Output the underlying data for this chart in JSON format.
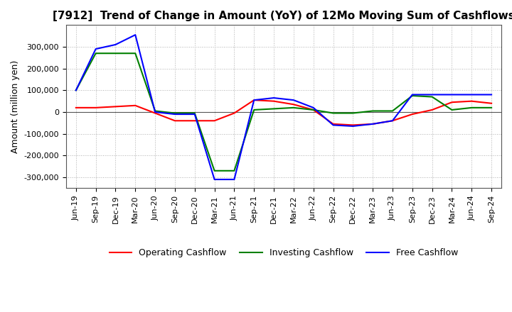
{
  "title": "[7912]  Trend of Change in Amount (YoY) of 12Mo Moving Sum of Cashflows",
  "ylabel": "Amount (million yen)",
  "ylim": [
    -350000,
    400000
  ],
  "yticks": [
    -300000,
    -200000,
    -100000,
    0,
    100000,
    200000,
    300000
  ],
  "legend_labels": [
    "Operating Cashflow",
    "Investing Cashflow",
    "Free Cashflow"
  ],
  "legend_colors": [
    "#ff0000",
    "#008000",
    "#0000ff"
  ],
  "x_labels": [
    "Jun-19",
    "Sep-19",
    "Dec-19",
    "Mar-20",
    "Jun-20",
    "Sep-20",
    "Dec-20",
    "Mar-21",
    "Jun-21",
    "Sep-21",
    "Dec-21",
    "Mar-22",
    "Jun-22",
    "Sep-22",
    "Dec-22",
    "Mar-23",
    "Jun-23",
    "Sep-23",
    "Dec-23",
    "Mar-24",
    "Jun-24",
    "Sep-24"
  ],
  "operating_cashflow": [
    20000,
    20000,
    25000,
    30000,
    -5000,
    -40000,
    -40000,
    -40000,
    -5000,
    55000,
    50000,
    35000,
    10000,
    -55000,
    -60000,
    -55000,
    -40000,
    -10000,
    10000,
    45000,
    50000,
    40000
  ],
  "investing_cashflow": [
    100000,
    270000,
    270000,
    270000,
    5000,
    -5000,
    -5000,
    -270000,
    -270000,
    10000,
    15000,
    20000,
    10000,
    -5000,
    -5000,
    5000,
    5000,
    75000,
    70000,
    10000,
    20000,
    20000
  ],
  "free_cashflow": [
    100000,
    290000,
    310000,
    355000,
    0,
    -10000,
    -10000,
    -310000,
    -310000,
    55000,
    65000,
    55000,
    20000,
    -60000,
    -65000,
    -55000,
    -40000,
    80000,
    80000,
    80000,
    80000,
    80000
  ],
  "background_color": "#ffffff",
  "grid_color": "#b0b0b0",
  "grid_style": "dotted",
  "title_fontsize": 11,
  "axis_fontsize": 9,
  "tick_fontsize": 8,
  "legend_fontsize": 9
}
